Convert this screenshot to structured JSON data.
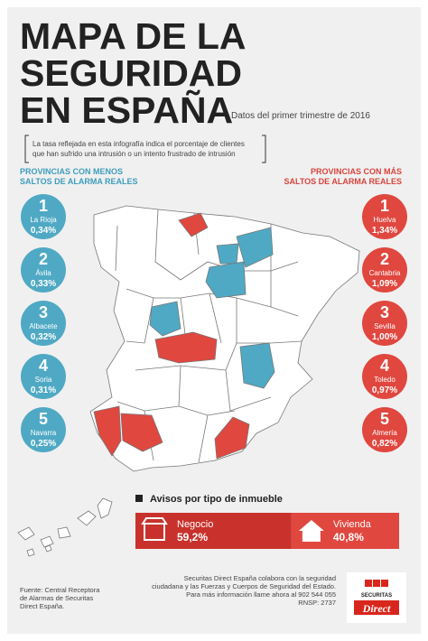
{
  "header": {
    "title": [
      "MAPA DE LA",
      "SEGURIDAD",
      "EN ESPAÑA"
    ],
    "subtitle": "Datos del primer trimestre de 2016"
  },
  "intro": [
    "La tasa reflejada en esta infografía indica el porcentaje de clientes",
    "que han sufrido una intrusión o un intento frustrado de intrusión"
  ],
  "least": {
    "heading": [
      "PROVINCIAS CON MENOS",
      "SALTOS DE ALARMA REALES"
    ],
    "items": [
      {
        "rank": 1,
        "name": "La Rioja",
        "rate": "0,34%"
      },
      {
        "rank": 2,
        "name": "Ávila",
        "rate": "0,33%"
      },
      {
        "rank": 3,
        "name": "Albacete",
        "rate": "0,32%"
      },
      {
        "rank": 4,
        "name": "Soria",
        "rate": "0,31%"
      },
      {
        "rank": 5,
        "name": "Navarra",
        "rate": "0,25%"
      }
    ]
  },
  "most": {
    "heading": [
      "PROVINCIAS CON MÁS",
      "SALTOS DE ALARMA REALES"
    ],
    "items": [
      {
        "rank": 1,
        "name": "Huelva",
        "rate": "1,34%"
      },
      {
        "rank": 2,
        "name": "Cantabria",
        "rate": "1,09%"
      },
      {
        "rank": 3,
        "name": "Sevilla",
        "rate": "1,00%"
      },
      {
        "rank": 4,
        "name": "Toledo",
        "rate": "0,97%"
      },
      {
        "rank": 5,
        "name": "Almería",
        "rate": "0,82%"
      }
    ]
  },
  "property": {
    "heading": "Avisos por tipo de inmueble",
    "items": [
      {
        "name": "Negocio",
        "value": 59.2,
        "label": "59,2%"
      },
      {
        "name": "Vivienda",
        "value": 40.8,
        "label": "40,8%"
      }
    ]
  },
  "footer": {
    "source": [
      "Fuente: Central Receptora",
      "de Alarmas de Securitas",
      "Direct España."
    ],
    "note": [
      "Securitas Direct España colabora con la seguridad",
      "ciudadana y las Fuerzas y Cuerpos de Seguridad del Estado.",
      "Para más información llame ahora al 902 544 055"
    ],
    "rnsp": "RNSP: 2737"
  },
  "logo": {
    "brand": "SECURITAS",
    "name": "Direct"
  }
}
